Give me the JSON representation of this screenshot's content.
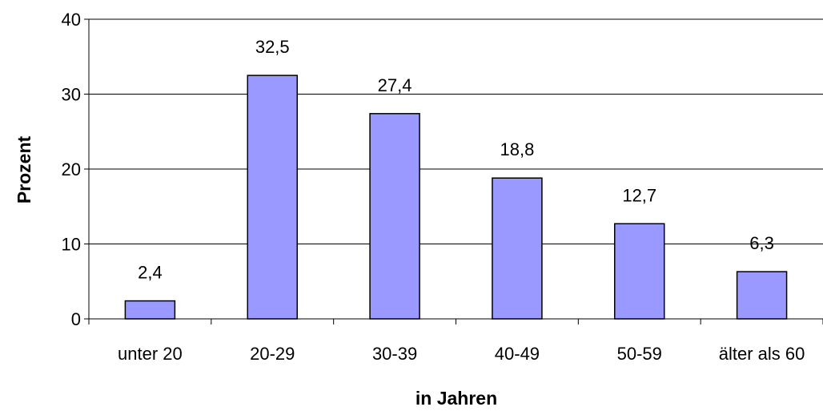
{
  "chart_data": {
    "type": "bar",
    "categories": [
      "unter 20",
      "20-29",
      "30-39",
      "40-49",
      "50-59",
      "älter als 60"
    ],
    "values": [
      2.4,
      32.5,
      27.4,
      18.8,
      12.7,
      6.3
    ],
    "value_labels": [
      "2,4",
      "32,5",
      "27,4",
      "18,8",
      "12,7",
      "6,3"
    ],
    "xlabel": "in Jahren",
    "ylabel": "Prozent",
    "ylim": [
      0,
      40
    ],
    "yticks": [
      0,
      10,
      20,
      30,
      40
    ],
    "grid": true,
    "legend": "none",
    "bar_color": "#9999ff",
    "bar_edge_color": "#000000"
  }
}
